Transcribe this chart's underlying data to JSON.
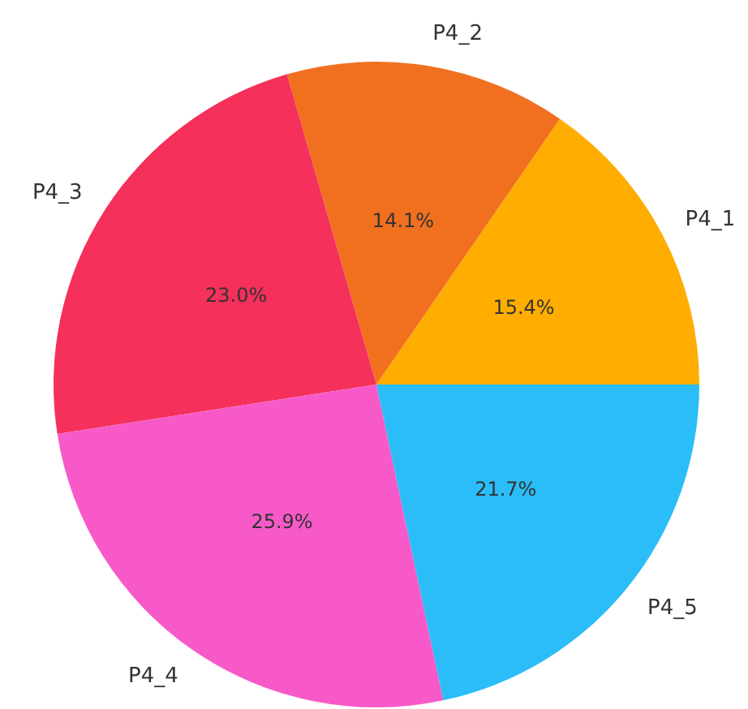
{
  "chart_data": {
    "type": "pie",
    "categories": [
      "P4_1",
      "P4_2",
      "P4_3",
      "P4_4",
      "P4_5"
    ],
    "values": [
      15.4,
      14.1,
      23.0,
      25.9,
      21.7
    ],
    "value_labels": [
      "15.4%",
      "14.1%",
      "23.0%",
      "25.9%",
      "21.7%"
    ],
    "colors": [
      "#ffad00",
      "#f07020",
      "#f5305a",
      "#f75ac8",
      "#2bbdf8"
    ]
  }
}
